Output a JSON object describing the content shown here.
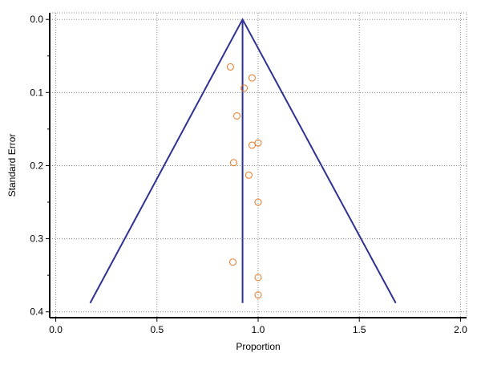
{
  "chart_data": {
    "type": "scatter",
    "xlabel": "Proportion",
    "ylabel": "Standard Error",
    "xlim": [
      -0.03,
      2.03
    ],
    "ylim": [
      -0.009,
      0.408
    ],
    "y_inverted": true,
    "grid": true,
    "xticks": [
      {
        "value": 0,
        "label": "0.0"
      },
      {
        "value": 0.5,
        "label": "0.5"
      },
      {
        "value": 1,
        "label": "1.0"
      },
      {
        "value": 1.5,
        "label": "1.5"
      },
      {
        "value": 2,
        "label": "2.0"
      }
    ],
    "yticks": [
      {
        "value": 0,
        "label": "0.0"
      },
      {
        "value": 0.1,
        "label": "0.1"
      },
      {
        "value": 0.2,
        "label": "0.2"
      },
      {
        "value": 0.3,
        "label": "0.3"
      },
      {
        "value": 0.4,
        "label": "0.4"
      }
    ],
    "yminorticks": [
      0.05,
      0.15,
      0.25,
      0.35
    ],
    "series": [
      {
        "color": "#e87722",
        "x": [
          0.863,
          0.97,
          0.931,
          0.895,
          1.0,
          0.97,
          0.879,
          0.954,
          1.0,
          0.875,
          1.0,
          1.0
        ],
        "values": [
          0.065,
          0.08,
          0.094,
          0.132,
          0.169,
          0.172,
          0.196,
          0.213,
          0.25,
          0.332,
          0.353,
          0.377
        ]
      }
    ],
    "lines": [
      {
        "color": "#2e3192",
        "x": [
          0.923,
          0.923
        ],
        "values": [
          0,
          0.388
        ]
      },
      {
        "color": "#2e3192",
        "x": [
          0.17,
          0.923,
          1.68
        ],
        "values": [
          0.388,
          0,
          0.388
        ]
      }
    ]
  }
}
